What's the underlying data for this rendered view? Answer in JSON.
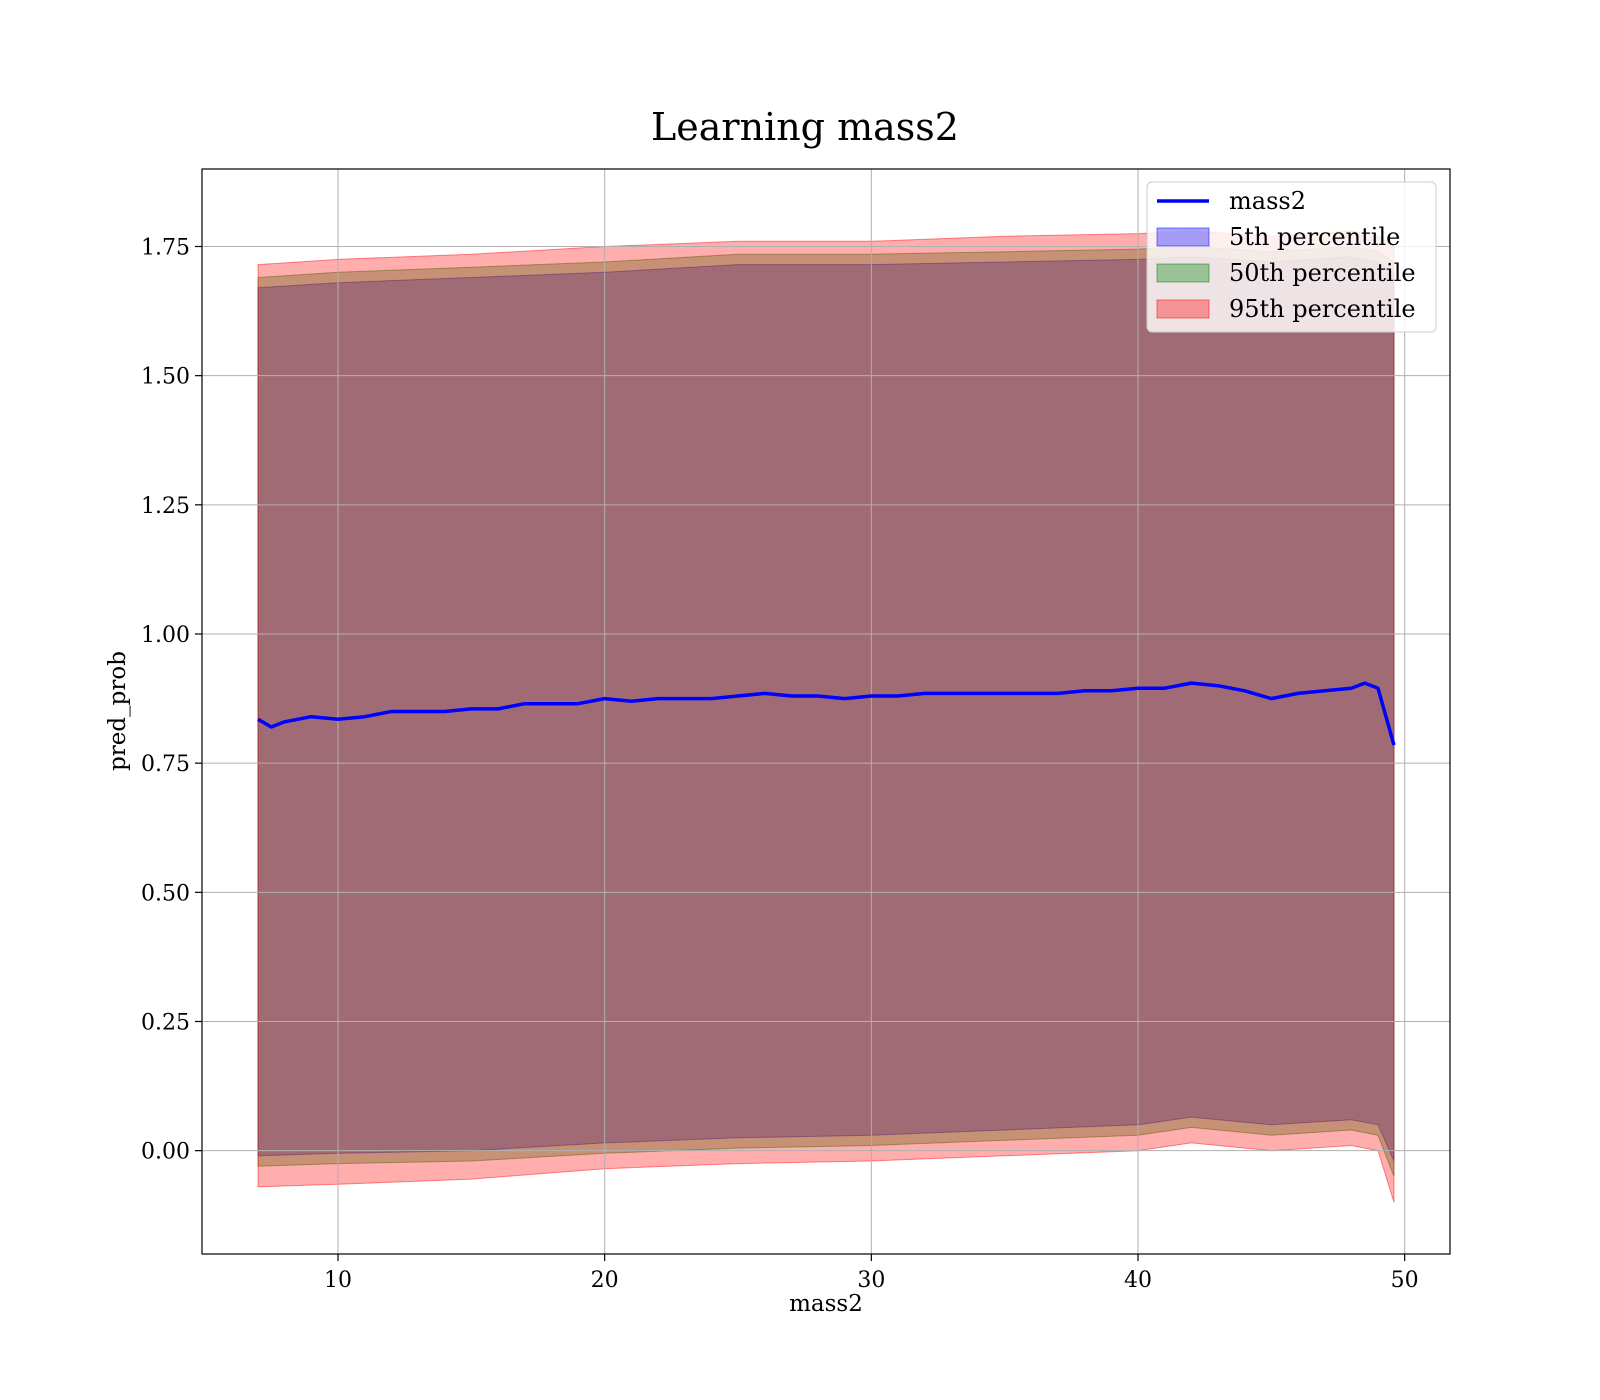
{
  "chart_data": {
    "type": "line",
    "title": "Learning mass2",
    "xlabel": "mass2",
    "ylabel": "pred_prob",
    "xlim": [
      4.9,
      51.7
    ],
    "ylim": [
      -0.2,
      1.9
    ],
    "xticks": [
      10,
      20,
      30,
      40,
      50
    ],
    "yticks": [
      0.0,
      0.25,
      0.5,
      0.75,
      1.0,
      1.25,
      1.5,
      1.75
    ],
    "ytick_labels": [
      "0.00",
      "0.25",
      "0.50",
      "0.75",
      "1.00",
      "1.25",
      "1.50",
      "1.75"
    ],
    "grid": true,
    "legend_position": "top-right",
    "series": [
      {
        "name": "mass2",
        "kind": "line",
        "color": "#0000ff",
        "x": [
          7.0,
          7.5,
          8.0,
          9.0,
          10.0,
          11.0,
          12.0,
          13.0,
          14.0,
          15.0,
          16.0,
          17.0,
          18.0,
          19.0,
          20.0,
          21.0,
          22.0,
          23.0,
          24.0,
          25.0,
          26.0,
          27.0,
          28.0,
          29.0,
          30.0,
          31.0,
          32.0,
          33.0,
          34.0,
          35.0,
          36.0,
          37.0,
          38.0,
          39.0,
          40.0,
          41.0,
          42.0,
          43.0,
          44.0,
          45.0,
          46.0,
          47.0,
          48.0,
          48.5,
          49.0,
          49.3,
          49.6
        ],
        "y": [
          0.835,
          0.82,
          0.83,
          0.84,
          0.835,
          0.84,
          0.85,
          0.85,
          0.85,
          0.855,
          0.855,
          0.865,
          0.865,
          0.865,
          0.875,
          0.87,
          0.875,
          0.875,
          0.875,
          0.88,
          0.885,
          0.88,
          0.88,
          0.875,
          0.88,
          0.88,
          0.885,
          0.885,
          0.885,
          0.885,
          0.885,
          0.885,
          0.89,
          0.89,
          0.895,
          0.895,
          0.905,
          0.9,
          0.89,
          0.875,
          0.885,
          0.89,
          0.895,
          0.905,
          0.895,
          0.84,
          0.785
        ]
      },
      {
        "name": "5th percentile",
        "kind": "band",
        "color": "#0000ff",
        "x": [
          7.0,
          10.0,
          15.0,
          20.0,
          25.0,
          30.0,
          35.0,
          40.0,
          42.0,
          45.0,
          48.0,
          49.0,
          49.6
        ],
        "upper": [
          1.67,
          1.68,
          1.69,
          1.7,
          1.715,
          1.715,
          1.72,
          1.725,
          1.73,
          1.72,
          1.73,
          1.72,
          1.7
        ],
        "lower": [
          -0.01,
          -0.005,
          0.0,
          0.015,
          0.025,
          0.03,
          0.04,
          0.05,
          0.065,
          0.05,
          0.06,
          0.05,
          -0.02
        ]
      },
      {
        "name": "50th percentile",
        "kind": "band",
        "color": "#008000",
        "x": [
          7.0,
          10.0,
          15.0,
          20.0,
          25.0,
          30.0,
          35.0,
          40.0,
          42.0,
          45.0,
          48.0,
          49.0,
          49.6
        ],
        "upper": [
          1.69,
          1.7,
          1.71,
          1.72,
          1.735,
          1.735,
          1.74,
          1.745,
          1.75,
          1.74,
          1.75,
          1.74,
          1.72
        ],
        "lower": [
          -0.03,
          -0.025,
          -0.02,
          -0.005,
          0.005,
          0.01,
          0.02,
          0.03,
          0.045,
          0.03,
          0.04,
          0.03,
          -0.05
        ]
      },
      {
        "name": "95th percentile",
        "kind": "band",
        "color": "#ff0000",
        "x": [
          7.0,
          10.0,
          15.0,
          20.0,
          25.0,
          30.0,
          35.0,
          40.0,
          42.0,
          45.0,
          48.0,
          49.0,
          49.6
        ],
        "upper": [
          1.715,
          1.725,
          1.735,
          1.75,
          1.76,
          1.76,
          1.77,
          1.775,
          1.78,
          1.77,
          1.78,
          1.77,
          1.75
        ],
        "lower": [
          -0.07,
          -0.065,
          -0.055,
          -0.035,
          -0.025,
          -0.02,
          -0.01,
          0.0,
          0.015,
          0.0,
          0.01,
          0.0,
          -0.1
        ]
      }
    ]
  }
}
